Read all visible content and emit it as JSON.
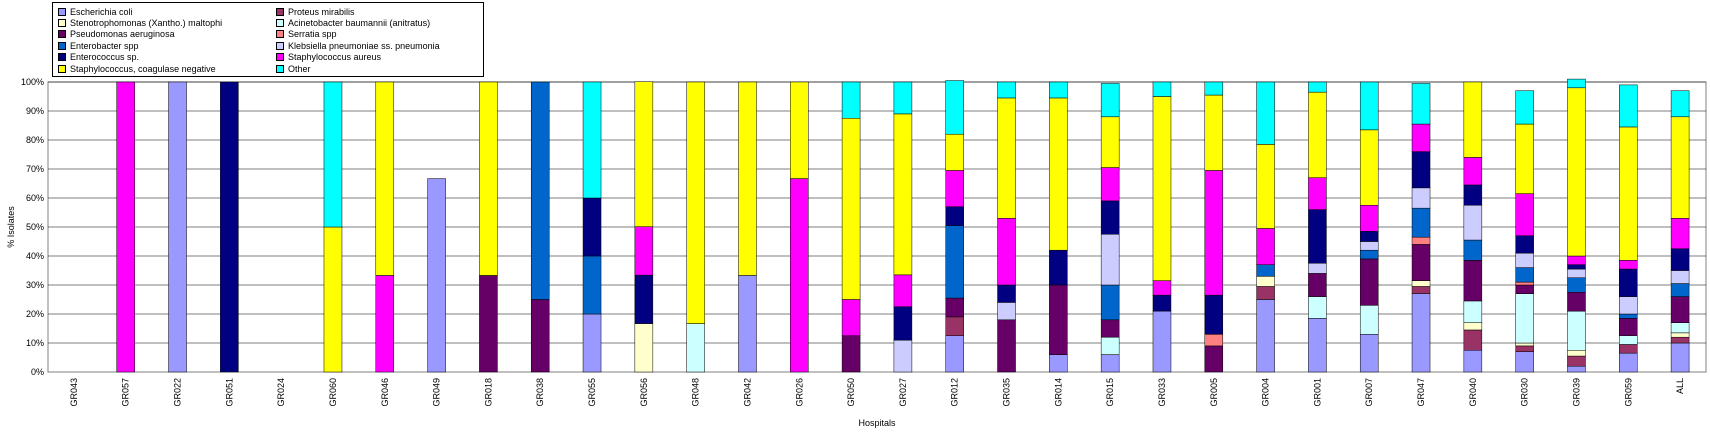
{
  "chart_data": {
    "type": "bar",
    "stacked": true,
    "xlabel": "Hospitals",
    "ylabel": "% Isolates",
    "ylim": [
      0,
      100
    ],
    "ytick_labels": [
      "0%",
      "10%",
      "20%",
      "30%",
      "40%",
      "50%",
      "60%",
      "70%",
      "80%",
      "90%",
      "100%"
    ],
    "grid": true,
    "legend_position": "top-left",
    "categories": [
      "GR043",
      "GR057",
      "GR022",
      "GR051",
      "GR024",
      "GR060",
      "GR046",
      "GR049",
      "GR018",
      "GR038",
      "GR055",
      "GR056",
      "GR048",
      "GR042",
      "GR026",
      "GR050",
      "GR027",
      "GR012",
      "GR035",
      "GR014",
      "GR015",
      "GR033",
      "GR005",
      "GR004",
      "GR001",
      "GR007",
      "GR047",
      "GR040",
      "GR030",
      "GR039",
      "GR059",
      "ALL"
    ],
    "series": [
      {
        "name": "Escherichia coli",
        "color": "#9999FF",
        "values": [
          0,
          0,
          100,
          0,
          0,
          0,
          0,
          66.7,
          0,
          0,
          20,
          0,
          0,
          33.3,
          0,
          0,
          0,
          12.5,
          0,
          6,
          6,
          21,
          0,
          25,
          18.5,
          13,
          27,
          7.5,
          7,
          2,
          6.5,
          10
        ]
      },
      {
        "name": "Proteus mirabilis",
        "color": "#993366",
        "values": [
          0,
          0,
          0,
          0,
          0,
          0,
          0,
          0,
          0,
          0,
          0,
          0,
          0,
          0,
          0,
          0,
          0,
          6.5,
          0,
          0,
          0,
          0,
          0,
          4.5,
          0,
          0,
          2.5,
          7,
          2,
          3.5,
          3,
          2
        ]
      },
      {
        "name": "Stenotrophomonas (Xantho.) maltophi",
        "color": "#FFFFCC",
        "values": [
          0,
          0,
          0,
          0,
          0,
          0,
          0,
          0,
          0,
          0,
          0,
          16.7,
          0,
          0,
          0,
          0,
          0,
          0,
          0,
          0,
          0,
          0,
          0,
          3.5,
          0,
          0,
          2,
          2.5,
          1,
          2,
          0,
          1.5
        ]
      },
      {
        "name": "Acinetobacter baumannii (anitratus)",
        "color": "#CCFFFF",
        "values": [
          0,
          0,
          0,
          0,
          0,
          0,
          0,
          0,
          0,
          0,
          0,
          0,
          16.7,
          0,
          0,
          0,
          0,
          0,
          0,
          0,
          6,
          0,
          0,
          0,
          7.5,
          10,
          0,
          7.5,
          17,
          13.5,
          3,
          3.5
        ]
      },
      {
        "name": "Pseudomonas aeruginosa",
        "color": "#660066",
        "values": [
          0,
          0,
          0,
          0,
          0,
          0,
          0,
          0,
          33.3,
          25,
          0,
          0,
          0,
          0,
          0,
          12.5,
          0,
          6.5,
          18,
          24,
          6,
          0,
          9,
          0,
          8,
          16,
          12.5,
          14,
          3,
          6.5,
          6,
          9
        ]
      },
      {
        "name": "Serratia spp",
        "color": "#FF8080",
        "values": [
          0,
          0,
          0,
          0,
          0,
          0,
          0,
          0,
          0,
          0,
          0,
          0,
          0,
          0,
          0,
          0,
          0,
          0,
          0,
          0,
          0,
          0,
          4,
          0,
          0,
          0,
          2.5,
          0,
          1,
          0,
          0,
          0
        ]
      },
      {
        "name": "Enterobacter spp",
        "color": "#0066CC",
        "values": [
          0,
          0,
          0,
          0,
          0,
          0,
          0,
          0,
          0,
          75,
          20,
          0,
          0,
          0,
          0,
          0,
          0,
          25,
          0,
          0,
          12,
          0,
          0,
          4,
          0,
          3,
          10,
          7,
          5,
          5,
          1.5,
          4.5
        ]
      },
      {
        "name": "Klebsiella pneumoniae ss. pneumonia",
        "color": "#CCCCFF",
        "values": [
          0,
          0,
          0,
          0,
          0,
          0,
          0,
          0,
          0,
          0,
          0,
          0,
          0,
          0,
          0,
          0,
          11,
          0,
          6,
          0,
          17.5,
          0,
          0,
          0,
          3.5,
          3,
          7,
          12,
          5,
          3,
          6,
          4.5
        ]
      },
      {
        "name": "Enterococcus sp.",
        "color": "#000080",
        "values": [
          0,
          0,
          0,
          100,
          0,
          0,
          0,
          0,
          0,
          0,
          20,
          16.7,
          0,
          0,
          0,
          0,
          11.5,
          6.5,
          6,
          12,
          11.5,
          5.5,
          13.5,
          0,
          18.5,
          3.5,
          12.5,
          7,
          6,
          1.5,
          9.5,
          7.5
        ]
      },
      {
        "name": "Staphylococcus aureus",
        "color": "#FF00FF",
        "values": [
          0,
          100,
          0,
          0,
          0,
          0,
          33.3,
          0,
          0,
          0,
          0,
          16.7,
          0,
          0,
          66.7,
          12.5,
          11,
          12.5,
          23,
          0,
          11.5,
          5,
          43,
          12.5,
          11,
          9,
          9.5,
          9.5,
          14.5,
          3,
          3,
          10.5
        ]
      },
      {
        "name": "Staphylococcus, coagulase negative",
        "color": "#FFFF00",
        "values": [
          0,
          0,
          0,
          0,
          0,
          50,
          66.7,
          0,
          66.7,
          0,
          0,
          50,
          83.3,
          66.7,
          33.3,
          62.5,
          55.5,
          12.5,
          41.5,
          52.5,
          17.5,
          63.5,
          26,
          29,
          29.5,
          26,
          0,
          26,
          24,
          58,
          46,
          35
        ]
      },
      {
        "name": "Other",
        "color": "#00FFFF",
        "values": [
          0,
          0,
          0,
          0,
          0,
          50,
          0,
          0,
          0,
          0,
          40,
          0,
          0,
          0,
          0,
          12.5,
          11,
          18.5,
          5.5,
          5.5,
          11.5,
          5,
          4.5,
          21.5,
          3.5,
          16.5,
          14,
          0,
          11.5,
          3,
          14.5,
          9
        ]
      }
    ],
    "legend_order": [
      "Escherichia coli",
      "Proteus mirabilis",
      "Stenotrophomonas (Xantho.) maltophi",
      "Acinetobacter baumannii (anitratus)",
      "Pseudomonas aeruginosa",
      "Serratia spp",
      "Enterobacter spp",
      "Klebsiella pneumoniae ss. pneumonia",
      "Enterococcus sp.",
      "Staphylococcus aureus",
      "Staphylococcus, coagulase negative",
      "Other"
    ]
  }
}
